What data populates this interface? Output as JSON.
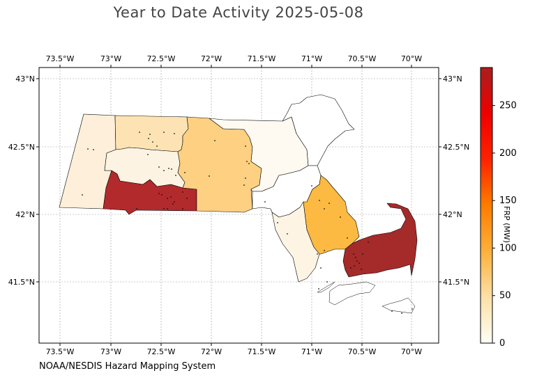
{
  "title": "Year to Date Activity 2025-05-08",
  "footer": "NOAA/NESDIS Hazard Mapping System",
  "colorbar": {
    "label": "FRP (MW)",
    "ticks": [
      "0",
      "50",
      "100",
      "150",
      "200",
      "250"
    ],
    "range": [
      0,
      290
    ],
    "colors": [
      "#fffdf6",
      "#fde0a6",
      "#fdb03a",
      "#ff7c00",
      "#ff2200",
      "#ee0000",
      "#a91e1e"
    ]
  },
  "map": {
    "lon_labels": [
      "73.5°W",
      "73°W",
      "72.5°W",
      "72°W",
      "71.5°W",
      "71°W",
      "70.5°W",
      "70°W"
    ],
    "lat_labels": [
      "43°N",
      "42.5°N",
      "42°N",
      "41.5°N"
    ],
    "grid": true,
    "regions": [
      {
        "name": "",
        "color": "#fdefd9"
      },
      {
        "name": "",
        "color": "#fde3b3"
      },
      {
        "name": "",
        "color": "#fdf3e2"
      },
      {
        "name": "",
        "color": "#b22a2c"
      },
      {
        "name": "",
        "color": "#fdd082"
      },
      {
        "name": "",
        "color": "#fffaf1"
      },
      {
        "name": "",
        "color": "#ffffff"
      },
      {
        "name": "",
        "color": "#ffffff"
      },
      {
        "name": "",
        "color": "#fdf4e4"
      },
      {
        "name": "",
        "color": "#fdba42"
      },
      {
        "name": "",
        "color": "#a52a2a"
      }
    ]
  }
}
